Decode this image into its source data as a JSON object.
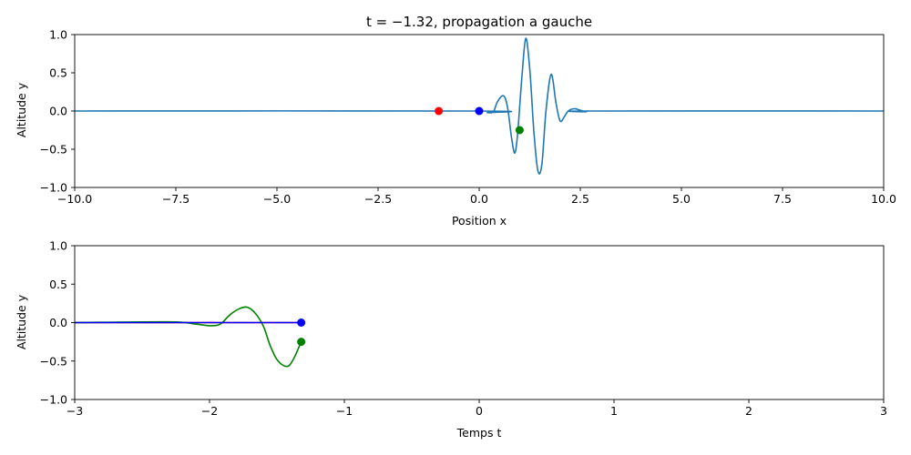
{
  "chart_data": [
    {
      "type": "line",
      "title": "t = −1.32, propagation a gauche",
      "xlabel": "Position x",
      "ylabel": "Altitude y",
      "xlim": [
        -10,
        10
      ],
      "ylim": [
        -1,
        1
      ],
      "x_ticks": [
        "−10.0",
        "−7.5",
        "−5.0",
        "−2.5",
        "0.0",
        "2.5",
        "5.0",
        "7.5",
        "10.0"
      ],
      "y_ticks": [
        "−1.0",
        "−0.5",
        "0.0",
        "0.5",
        "1.0"
      ],
      "grid": false,
      "series": [
        {
          "color": "#1f77b4",
          "x": [
            -10,
            0.0,
            0.2,
            0.35,
            0.45,
            0.6,
            0.7,
            0.8,
            0.88,
            0.95,
            1.05,
            1.15,
            1.25,
            1.35,
            1.45,
            1.55,
            1.65,
            1.78,
            1.9,
            2.0,
            2.1,
            2.2,
            2.35,
            2.5,
            2.65,
            2.8,
            10
          ],
          "y": [
            0,
            0,
            -0.02,
            -0.01,
            0.12,
            0.2,
            0.05,
            -0.35,
            -0.55,
            -0.3,
            0.4,
            0.95,
            0.55,
            -0.25,
            -0.78,
            -0.7,
            0.0,
            0.48,
            0.1,
            -0.13,
            -0.08,
            0.0,
            0.03,
            0.01,
            -0.01,
            0.0,
            0
          ]
        }
      ],
      "markers": [
        {
          "x": -1.0,
          "y": 0.0,
          "color": "#ff0000"
        },
        {
          "x": 0.0,
          "y": 0.0,
          "color": "#0000ff"
        },
        {
          "x": 1.0,
          "y": -0.25,
          "color": "#008000"
        }
      ]
    },
    {
      "type": "line",
      "title": "",
      "xlabel": "Temps t",
      "ylabel": "Altitude y",
      "xlim": [
        -3,
        3
      ],
      "ylim": [
        -1,
        1
      ],
      "x_ticks": [
        "−3",
        "−2",
        "−1",
        "0",
        "1",
        "2",
        "3"
      ],
      "y_ticks": [
        "−1.0",
        "−0.5",
        "0.0",
        "0.5",
        "1.0"
      ],
      "grid": false,
      "series": [
        {
          "color": "#ff0000",
          "x": [
            -3,
            -1.32
          ],
          "y": [
            0,
            0
          ]
        },
        {
          "color": "#008000",
          "x": [
            -3,
            -2.3,
            -2.1,
            -2.0,
            -1.92,
            -1.85,
            -1.78,
            -1.72,
            -1.66,
            -1.6,
            -1.55,
            -1.5,
            -1.45,
            -1.41,
            -1.37,
            -1.34,
            -1.32
          ],
          "y": [
            0,
            0.01,
            -0.02,
            -0.04,
            -0.02,
            0.1,
            0.18,
            0.2,
            0.12,
            -0.05,
            -0.3,
            -0.48,
            -0.56,
            -0.56,
            -0.45,
            -0.33,
            -0.25
          ]
        },
        {
          "color": "#0000ff",
          "x": [
            -3,
            -1.32
          ],
          "y": [
            0,
            0
          ]
        }
      ],
      "markers": [
        {
          "x": -1.32,
          "y": 0.0,
          "color": "#0000ff"
        },
        {
          "x": -1.32,
          "y": -0.25,
          "color": "#008000"
        }
      ]
    }
  ]
}
